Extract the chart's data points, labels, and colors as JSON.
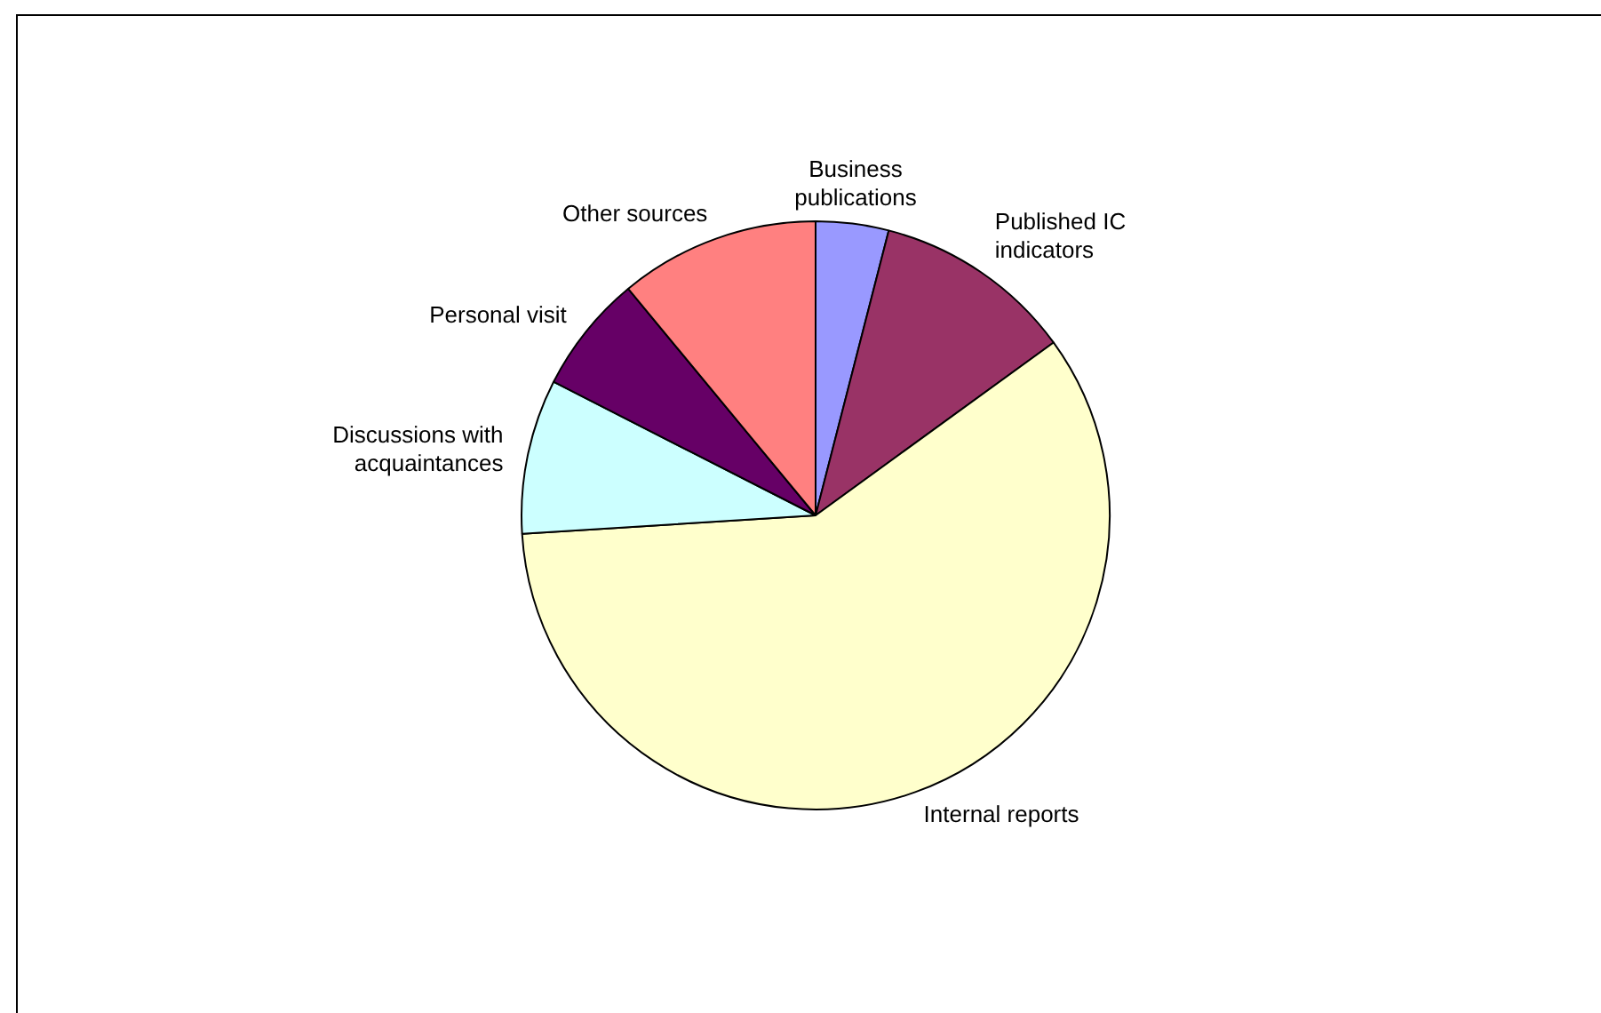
{
  "chart_data": {
    "type": "pie",
    "categories": [
      "Business\npublications",
      "Published IC\nindicators",
      "Internal reports",
      "Discussions with\nacquaintances",
      "Personal visit",
      "Other sources"
    ],
    "values": [
      4,
      11,
      59,
      8.5,
      6.5,
      11
    ],
    "colors": [
      "#9999ff",
      "#993366",
      "#ffffcc",
      "#ccffff",
      "#660066",
      "#ff8080"
    ],
    "legend": false
  }
}
